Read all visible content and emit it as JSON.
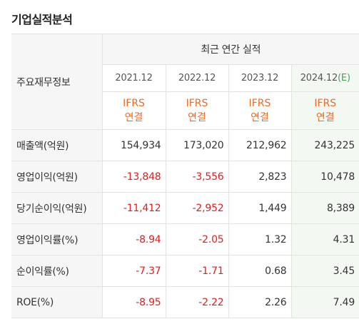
{
  "title": "기업실적분석",
  "table": {
    "row_header_label": "주요재무정보",
    "group_header": "최근 연간 실적",
    "years": [
      {
        "label": "2021.12",
        "estimate": false,
        "flag": ""
      },
      {
        "label": "2022.12",
        "estimate": false,
        "flag": ""
      },
      {
        "label": "2023.12",
        "estimate": false,
        "flag": ""
      },
      {
        "label": "2024.12",
        "estimate": true,
        "flag": "(E)"
      }
    ],
    "basis": [
      {
        "line1": "IFRS",
        "line2": "연결"
      },
      {
        "line1": "IFRS",
        "line2": "연결"
      },
      {
        "line1": "IFRS",
        "line2": "연결"
      },
      {
        "line1": "IFRS",
        "line2": "연결"
      }
    ],
    "rows": [
      {
        "label": "매출액(억원)",
        "values": [
          "154,934",
          "173,020",
          "212,962",
          "243,225"
        ]
      },
      {
        "label": "영업이익(억원)",
        "values": [
          "-13,848",
          "-3,556",
          "2,823",
          "10,478"
        ]
      },
      {
        "label": "당기순이익(억원)",
        "values": [
          "-11,412",
          "-2,952",
          "1,449",
          "8,389"
        ]
      },
      {
        "label": "영업이익률(%)",
        "values": [
          "-8.94",
          "-2.05",
          "1.32",
          "4.31"
        ]
      },
      {
        "label": "순이익률(%)",
        "values": [
          "-7.37",
          "-1.71",
          "0.68",
          "3.45"
        ]
      },
      {
        "label": "ROE(%)",
        "values": [
          "-8.95",
          "-2.22",
          "2.26",
          "7.49"
        ]
      }
    ]
  },
  "colors": {
    "negative": "#e02020",
    "ifrs_label": "#ef6a23",
    "estimate_bg": "#f3f8f2",
    "estimate_flag": "#4aa05a"
  }
}
